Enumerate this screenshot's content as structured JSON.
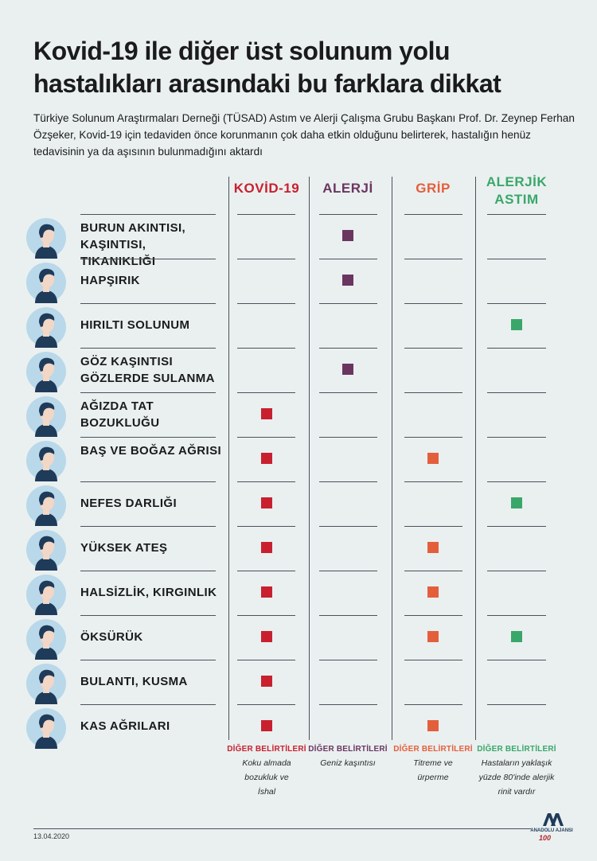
{
  "title_line1": "Kovid-19 ile diğer üst solunum yolu",
  "title_line2": "hastalıkları arasındaki bu farklara dikkat",
  "intro": "Türkiye Solunum Araştırmaları Derneği (TÜSAD) Astım ve Alerji Çalışma Grubu Başkanı Prof. Dr. Zeynep Ferhan Özşeker, Kovid-19 için tedaviden önce korunmanın çok daha etkin olduğunu belirterek, hastalığın henüz tedavisinin ya da aşısının bulunmadığını aktardı",
  "columns": [
    {
      "label": "KOVİD-19",
      "color": "#c8202f"
    },
    {
      "label": "ALERJİ",
      "color": "#6a3660"
    },
    {
      "label": "GRİP",
      "color": "#e35f3c"
    },
    {
      "label": "ALERJİK ASTIM",
      "color": "#3aa76a"
    }
  ],
  "symptoms": [
    {
      "label": "BURUN AKINTISI, KAŞINTISI, TIKANIKLIĞI",
      "marks": [
        false,
        true,
        false,
        false
      ]
    },
    {
      "label": "HAPŞIRIK",
      "marks": [
        false,
        true,
        false,
        false
      ]
    },
    {
      "label": "HIRILTI SOLUNUM",
      "marks": [
        false,
        false,
        false,
        true
      ]
    },
    {
      "label": "GÖZ KAŞINTISI GÖZLERDE SULANMA",
      "marks": [
        false,
        true,
        false,
        false
      ]
    },
    {
      "label": "AĞIZDA TAT BOZUKLUĞU",
      "marks": [
        true,
        false,
        false,
        false
      ]
    },
    {
      "label": "BAŞ VE BOĞAZ AĞRISI",
      "marks": [
        true,
        false,
        true,
        false
      ]
    },
    {
      "label": "NEFES DARLIĞI",
      "marks": [
        true,
        false,
        false,
        true
      ]
    },
    {
      "label": "YÜKSEK ATEŞ",
      "marks": [
        true,
        false,
        true,
        false
      ]
    },
    {
      "label": "HALSİZLİK, KIRGINLIK",
      "marks": [
        true,
        false,
        true,
        false
      ]
    },
    {
      "label": "ÖKSÜRÜK",
      "marks": [
        true,
        false,
        true,
        true
      ]
    },
    {
      "label": "BULANTI, KUSMA",
      "marks": [
        true,
        false,
        false,
        false
      ]
    },
    {
      "label": "KAS AĞRILARI",
      "marks": [
        true,
        false,
        true,
        false
      ]
    }
  ],
  "other_heading": "DİĞER BELİRTİLERİ",
  "other": [
    "Koku almada bozukluk ve İshal",
    "Geniz kaşıntısı",
    "Titreme ve ürperme",
    "Hastaların yaklaşık yüzde 80'inde alerjik rinit vardır"
  ],
  "date": "13.04.2020",
  "logo_text": "ANADOLU AJANSI",
  "logo_sub": "100"
}
